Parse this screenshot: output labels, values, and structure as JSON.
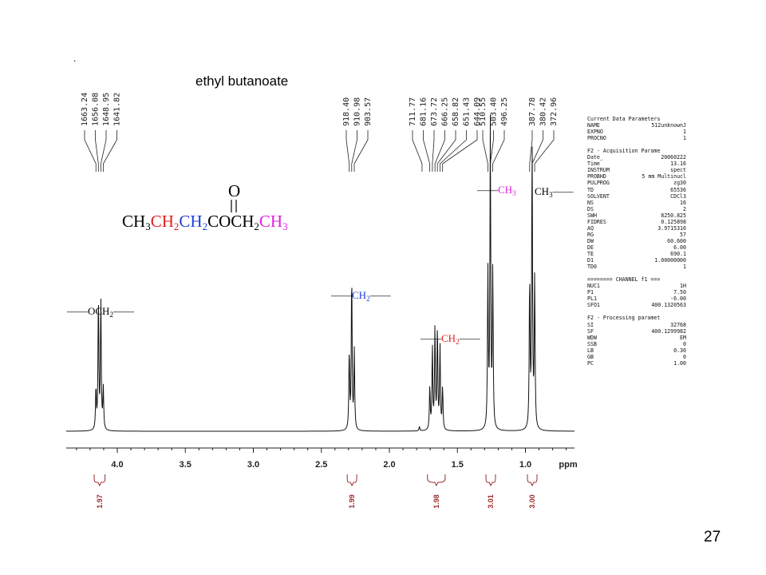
{
  "slide": {
    "title": "ethyl butanoate",
    "dot": ".",
    "page_number": "27"
  },
  "structure": {
    "carbonyl_o": "O",
    "parts": [
      {
        "text": "CH",
        "sub": "3",
        "color": "#000000"
      },
      {
        "text": "CH",
        "sub": "2",
        "color": "#e0201c"
      },
      {
        "text": "CH",
        "sub": "2",
        "color": "#1f3fd6"
      },
      {
        "text": "COCH",
        "sub": "2",
        "color": "#000000"
      },
      {
        "text": "CH",
        "sub": "3",
        "color": "#e020e0"
      }
    ]
  },
  "peak_group_labels": [
    {
      "text": "OCH",
      "sub": "2",
      "color": "#000000"
    },
    {
      "text": "CH",
      "sub": "2",
      "color": "#1f3fd6"
    },
    {
      "text": "CH",
      "sub": "2",
      "color": "#e0201c"
    },
    {
      "text": "CH",
      "sub": "3",
      "color": "#e020e0"
    },
    {
      "text": "CH",
      "sub": "3",
      "color": "#000000"
    }
  ],
  "parameters": [
    {
      "k": "Current Data Parameters",
      "v": ""
    },
    {
      "k": "NAME",
      "v": "512unknownJ"
    },
    {
      "k": "EXPNO",
      "v": "1"
    },
    {
      "k": "PROCNO",
      "v": "1"
    },
    {
      "k": "",
      "v": ""
    },
    {
      "k": "F2 - Acquisition Parame",
      "v": ""
    },
    {
      "k": "Date_",
      "v": "20060222"
    },
    {
      "k": "Time",
      "v": "13.16"
    },
    {
      "k": "INSTRUM",
      "v": "spect"
    },
    {
      "k": "PROBHD",
      "v": "5 mm Multinucl"
    },
    {
      "k": "PULPROG",
      "v": "zg30"
    },
    {
      "k": "TD",
      "v": "65536"
    },
    {
      "k": "SOLVENT",
      "v": "CDCl3"
    },
    {
      "k": "NS",
      "v": "16"
    },
    {
      "k": "DS",
      "v": "2"
    },
    {
      "k": "SWH",
      "v": "8250.825"
    },
    {
      "k": "FIDRES",
      "v": "0.125898"
    },
    {
      "k": "AQ",
      "v": "3.9715316"
    },
    {
      "k": "RG",
      "v": "57"
    },
    {
      "k": "DW",
      "v": "60.600"
    },
    {
      "k": "DE",
      "v": "6.00"
    },
    {
      "k": "TE",
      "v": "690.1"
    },
    {
      "k": "D1",
      "v": "1.00000000"
    },
    {
      "k": "TD0",
      "v": "1"
    },
    {
      "k": "",
      "v": ""
    },
    {
      "k": "======== CHANNEL f1 ===",
      "v": ""
    },
    {
      "k": "NUC1",
      "v": "1H"
    },
    {
      "k": "P1",
      "v": "7.50"
    },
    {
      "k": "PL1",
      "v": "-6.00"
    },
    {
      "k": "SFO1",
      "v": "400.1320563"
    },
    {
      "k": "",
      "v": ""
    },
    {
      "k": "F2 - Processing paramet",
      "v": ""
    },
    {
      "k": "SI",
      "v": "32768"
    },
    {
      "k": "SF",
      "v": "400.1299982"
    },
    {
      "k": "WDW",
      "v": "EM"
    },
    {
      "k": "SSB",
      "v": "0"
    },
    {
      "k": "LB",
      "v": "0.30"
    },
    {
      "k": "GB",
      "v": "0"
    },
    {
      "k": "PC",
      "v": "1.00"
    }
  ],
  "colors": {
    "spectrum": "#111111",
    "integral": "#9b2c2c",
    "red": "#e0201c",
    "blue": "#1f3fd6",
    "magenta": "#e020e0"
  },
  "chart_data": {
    "type": "line",
    "title": "ethyl butanoate",
    "xlabel": "ppm",
    "ylabel": "",
    "xlim": [
      4.3,
      0.6
    ],
    "x_reversed": true,
    "x_ticks": [
      "4.0",
      "3.5",
      "3.0",
      "2.5",
      "2.0",
      "1.5",
      "1.0"
    ],
    "x_tick_values": [
      4.0,
      3.5,
      3.0,
      2.5,
      2.0,
      1.5,
      1.0
    ],
    "x_unit_label": "ppm",
    "grid": false,
    "peak_label_groups": [
      {
        "labels": [
          "1663.24",
          "1656.08",
          "1648.95",
          "1641.82"
        ],
        "values_hz": [
          1663.24,
          1656.08,
          1648.95,
          1641.82
        ]
      },
      {
        "labels": [
          "918.40",
          "910.98",
          "903.57"
        ],
        "values_hz": [
          918.4,
          910.98,
          903.57
        ]
      },
      {
        "labels": [
          "711.77",
          "681.16",
          "673.72",
          "666.25",
          "658.82",
          "651.43",
          "644.09"
        ],
        "values_hz": [
          711.77,
          681.16,
          673.72,
          666.25,
          658.82,
          651.43,
          644.09
        ]
      },
      {
        "labels": [
          "510.55",
          "503.40",
          "496.25"
        ],
        "values_hz": [
          510.55,
          503.4,
          496.25
        ]
      },
      {
        "labels": [
          "387.78",
          "380.42",
          "372.96"
        ],
        "values_hz": [
          387.78,
          380.42,
          372.96
        ]
      }
    ],
    "series": [
      {
        "peaks": [
          {
            "ppm": 4.157,
            "height": 0.29
          },
          {
            "ppm": 4.139,
            "height": 0.92
          },
          {
            "ppm": 4.121,
            "height": 0.92
          },
          {
            "ppm": 4.103,
            "height": 0.29
          },
          {
            "ppm": 2.295,
            "height": 0.55
          },
          {
            "ppm": 2.277,
            "height": 1.1
          },
          {
            "ppm": 2.258,
            "height": 0.55
          },
          {
            "ppm": 1.779,
            "height": 0.03
          },
          {
            "ppm": 1.703,
            "height": 0.3
          },
          {
            "ppm": 1.684,
            "height": 0.58
          },
          {
            "ppm": 1.665,
            "height": 0.71
          },
          {
            "ppm": 1.647,
            "height": 0.71
          },
          {
            "ppm": 1.628,
            "height": 0.58
          },
          {
            "ppm": 1.609,
            "height": 0.3
          },
          {
            "ppm": 1.276,
            "height": 1.09
          },
          {
            "ppm": 1.258,
            "height": 2.12
          },
          {
            "ppm": 1.24,
            "height": 1.09
          },
          {
            "ppm": 0.969,
            "height": 1.05
          },
          {
            "ppm": 0.951,
            "height": 2.02
          },
          {
            "ppm": 0.932,
            "height": 1.05
          }
        ]
      }
    ],
    "integrals": [
      {
        "label": "1.97",
        "value": 1.97,
        "from_ppm": 4.17,
        "to_ppm": 4.09
      },
      {
        "label": "1.99",
        "value": 1.99,
        "from_ppm": 2.31,
        "to_ppm": 2.24
      },
      {
        "label": "1.98",
        "value": 1.98,
        "from_ppm": 1.72,
        "to_ppm": 1.59
      },
      {
        "label": "3.01",
        "value": 3.01,
        "from_ppm": 1.29,
        "to_ppm": 1.22
      },
      {
        "label": "3.00",
        "value": 3.0,
        "from_ppm": 0.985,
        "to_ppm": 0.915
      }
    ]
  }
}
